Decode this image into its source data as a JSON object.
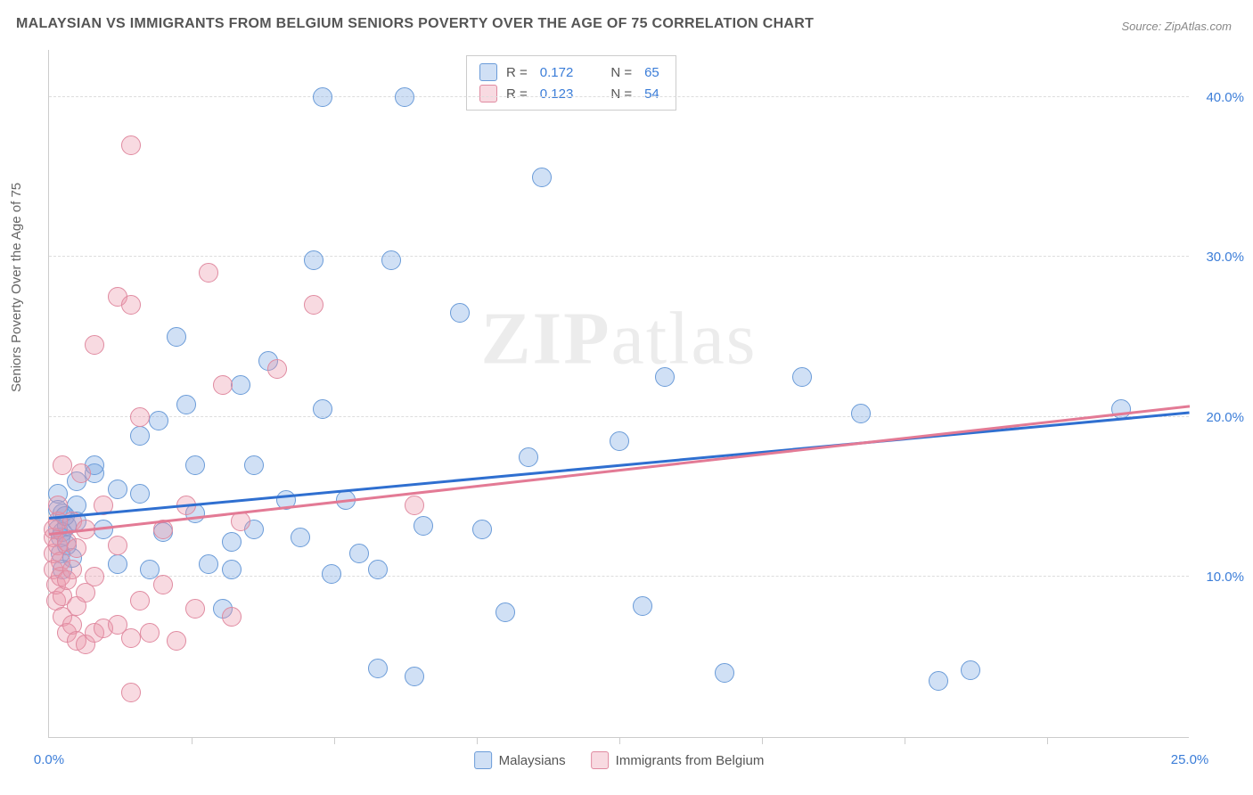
{
  "title": "MALAYSIAN VS IMMIGRANTS FROM BELGIUM SENIORS POVERTY OVER THE AGE OF 75 CORRELATION CHART",
  "source": "Source: ZipAtlas.com",
  "y_axis_label": "Seniors Poverty Over the Age of 75",
  "watermark": {
    "bold": "ZIP",
    "rest": "atlas"
  },
  "chart": {
    "type": "scatter",
    "xlim": [
      0,
      25
    ],
    "ylim": [
      0,
      43
    ],
    "x_ticks": [
      {
        "v": 0,
        "label": "0.0%"
      },
      {
        "v": 25,
        "label": "25.0%"
      }
    ],
    "x_minor_ticks": [
      3.125,
      6.25,
      9.375,
      12.5,
      15.625,
      18.75,
      21.875
    ],
    "y_ticks": [
      {
        "v": 10,
        "label": "10.0%"
      },
      {
        "v": 20,
        "label": "20.0%"
      },
      {
        "v": 30,
        "label": "30.0%"
      },
      {
        "v": 40,
        "label": "40.0%"
      }
    ],
    "marker_radius": 11,
    "background_color": "#ffffff",
    "grid_color": "#dddddd",
    "axis_color": "#cccccc",
    "tick_label_color": "#3b7dd8",
    "series": [
      {
        "name": "Malaysians",
        "fill": "rgba(120,165,225,0.35)",
        "stroke": "#6a9bd8",
        "trend_color": "#2f6fd0",
        "trend": {
          "x1": 0,
          "y1": 13.6,
          "x2": 25,
          "y2": 20.2
        },
        "r": "0.172",
        "n": "65",
        "points": [
          [
            0.2,
            13.0
          ],
          [
            0.2,
            14.2
          ],
          [
            0.2,
            15.2
          ],
          [
            0.25,
            11.5
          ],
          [
            0.25,
            12.5
          ],
          [
            0.3,
            12.8
          ],
          [
            0.3,
            14.0
          ],
          [
            0.4,
            12.0
          ],
          [
            0.4,
            13.2
          ],
          [
            0.5,
            11.2
          ],
          [
            0.6,
            13.5
          ],
          [
            0.6,
            14.5
          ],
          [
            0.6,
            16.0
          ],
          [
            1.0,
            16.5
          ],
          [
            1.0,
            17.0
          ],
          [
            1.2,
            13.0
          ],
          [
            1.5,
            10.8
          ],
          [
            1.5,
            15.5
          ],
          [
            2.0,
            15.2
          ],
          [
            2.0,
            18.8
          ],
          [
            2.2,
            10.5
          ],
          [
            2.4,
            19.8
          ],
          [
            2.5,
            12.8
          ],
          [
            2.8,
            25.0
          ],
          [
            3.0,
            20.8
          ],
          [
            3.2,
            14.0
          ],
          [
            3.2,
            17.0
          ],
          [
            3.5,
            10.8
          ],
          [
            3.8,
            8.0
          ],
          [
            4.0,
            10.5
          ],
          [
            4.0,
            12.2
          ],
          [
            4.2,
            22.0
          ],
          [
            4.5,
            13.0
          ],
          [
            4.5,
            17.0
          ],
          [
            4.8,
            23.5
          ],
          [
            5.2,
            14.8
          ],
          [
            5.5,
            12.5
          ],
          [
            5.8,
            29.8
          ],
          [
            6.0,
            20.5
          ],
          [
            6.0,
            40.0
          ],
          [
            6.2,
            10.2
          ],
          [
            6.5,
            14.8
          ],
          [
            6.8,
            11.5
          ],
          [
            7.2,
            10.5
          ],
          [
            7.2,
            4.3
          ],
          [
            7.5,
            29.8
          ],
          [
            7.8,
            40.0
          ],
          [
            8.0,
            3.8
          ],
          [
            8.2,
            13.2
          ],
          [
            9.0,
            26.5
          ],
          [
            9.5,
            13.0
          ],
          [
            10.0,
            7.8
          ],
          [
            10.5,
            17.5
          ],
          [
            10.8,
            35.0
          ],
          [
            12.5,
            18.5
          ],
          [
            13.0,
            8.2
          ],
          [
            13.5,
            22.5
          ],
          [
            14.8,
            4.0
          ],
          [
            16.5,
            22.5
          ],
          [
            17.8,
            20.2
          ],
          [
            19.5,
            3.5
          ],
          [
            20.2,
            4.2
          ],
          [
            23.5,
            20.5
          ],
          [
            0.3,
            10.5
          ],
          [
            0.35,
            13.8
          ]
        ]
      },
      {
        "name": "Immigrants from Belgium",
        "fill": "rgba(235,150,170,0.35)",
        "stroke": "#e08aa0",
        "trend_color": "#e37a95",
        "trend": {
          "x1": 0,
          "y1": 12.6,
          "x2": 25,
          "y2": 20.6
        },
        "r": "0.123",
        "n": "54",
        "points": [
          [
            0.1,
            10.5
          ],
          [
            0.1,
            11.5
          ],
          [
            0.1,
            12.5
          ],
          [
            0.1,
            13.0
          ],
          [
            0.15,
            8.5
          ],
          [
            0.15,
            9.5
          ],
          [
            0.2,
            12.0
          ],
          [
            0.2,
            13.5
          ],
          [
            0.2,
            14.5
          ],
          [
            0.25,
            10.0
          ],
          [
            0.25,
            11.0
          ],
          [
            0.3,
            7.5
          ],
          [
            0.3,
            8.8
          ],
          [
            0.3,
            17.0
          ],
          [
            0.4,
            6.5
          ],
          [
            0.4,
            9.8
          ],
          [
            0.4,
            12.2
          ],
          [
            0.5,
            7.0
          ],
          [
            0.5,
            10.5
          ],
          [
            0.5,
            13.5
          ],
          [
            0.6,
            6.0
          ],
          [
            0.6,
            8.2
          ],
          [
            0.6,
            11.8
          ],
          [
            0.7,
            16.5
          ],
          [
            0.8,
            5.8
          ],
          [
            0.8,
            9.0
          ],
          [
            0.8,
            13.0
          ],
          [
            1.0,
            6.5
          ],
          [
            1.0,
            10.0
          ],
          [
            1.0,
            24.5
          ],
          [
            1.2,
            6.8
          ],
          [
            1.2,
            14.5
          ],
          [
            1.5,
            7.0
          ],
          [
            1.5,
            12.0
          ],
          [
            1.5,
            27.5
          ],
          [
            1.8,
            6.2
          ],
          [
            1.8,
            27.0
          ],
          [
            1.8,
            37.0
          ],
          [
            2.0,
            8.5
          ],
          [
            2.0,
            20.0
          ],
          [
            2.2,
            6.5
          ],
          [
            2.5,
            9.5
          ],
          [
            2.5,
            13.0
          ],
          [
            2.8,
            6.0
          ],
          [
            3.0,
            14.5
          ],
          [
            3.2,
            8.0
          ],
          [
            3.5,
            29.0
          ],
          [
            3.8,
            22.0
          ],
          [
            4.0,
            7.5
          ],
          [
            4.2,
            13.5
          ],
          [
            5.0,
            23.0
          ],
          [
            5.8,
            27.0
          ],
          [
            8.0,
            14.5
          ],
          [
            1.8,
            2.8
          ]
        ]
      }
    ],
    "legend_bottom": [
      {
        "label": "Malaysians",
        "series": 0
      },
      {
        "label": "Immigrants from Belgium",
        "series": 1
      }
    ]
  }
}
